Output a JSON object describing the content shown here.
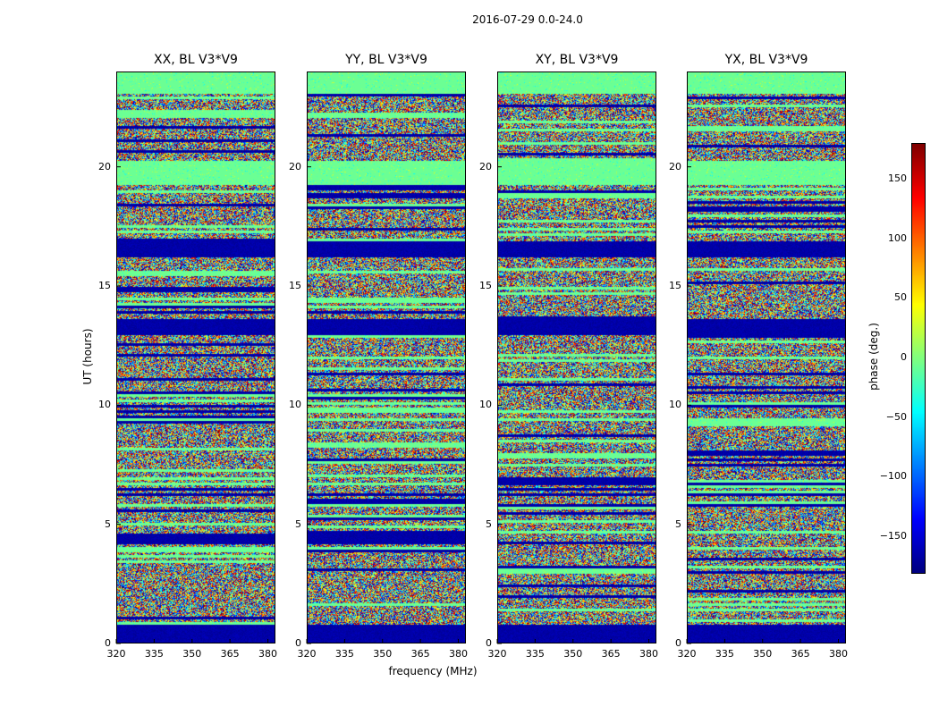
{
  "chart_data": {
    "type": "heatmap",
    "suptitle": "2016-07-29 0.0-24.0",
    "panels": [
      {
        "title": "XX, BL V3*V9"
      },
      {
        "title": "YY, BL V3*V9"
      },
      {
        "title": "XY, BL V3*V9"
      },
      {
        "title": "YX, BL V3*V9"
      }
    ],
    "xlabel": "frequency (MHz)",
    "ylabel": "UT (hours)",
    "xticks": [
      320,
      335,
      350,
      365,
      380
    ],
    "yticks": [
      0,
      5,
      10,
      15,
      20
    ],
    "xlim": [
      320,
      383
    ],
    "ylim": [
      0,
      24
    ],
    "colorbar": {
      "label": "phase (deg.)",
      "ticks": [
        150,
        100,
        50,
        0,
        -50,
        -100,
        -150
      ],
      "tick_labels": [
        "150",
        "100",
        "50",
        "0",
        "−50",
        "−100",
        "−150"
      ],
      "range": [
        -180,
        180
      ],
      "colormap": "jet"
    }
  }
}
